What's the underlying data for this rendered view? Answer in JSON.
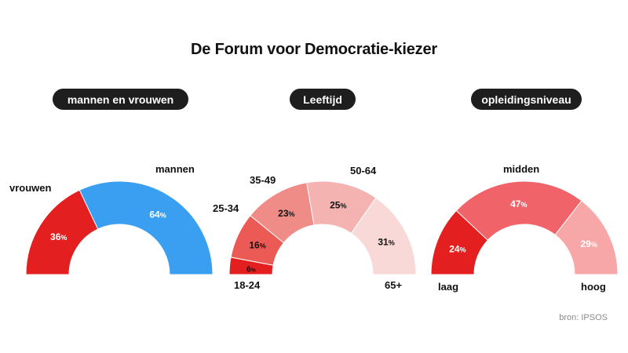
{
  "title": "De Forum voor Democratie-kiezer",
  "source": "bron: IPSOS",
  "chart_data": [
    {
      "type": "pie",
      "subtitle": "mannen en vrouwen",
      "categories": [
        "vrouwen",
        "mannen"
      ],
      "values": [
        36,
        64
      ],
      "colors": [
        "#e3201f",
        "#3a9ff0"
      ],
      "label_colors": [
        "#ffffff",
        "#ffffff"
      ]
    },
    {
      "type": "pie",
      "subtitle": "Leeftijd",
      "categories": [
        "18-24",
        "25-34",
        "35-49",
        "50-64",
        "65+"
      ],
      "values": [
        6,
        16,
        23,
        25,
        31
      ],
      "colors": [
        "#e3201f",
        "#ec5a55",
        "#f08c88",
        "#f4b2b0",
        "#f9d9d8"
      ],
      "label_colors": [
        "#111111",
        "#111111",
        "#111111",
        "#111111",
        "#111111"
      ]
    },
    {
      "type": "pie",
      "subtitle": "opleidingsniveau",
      "categories": [
        "laag",
        "midden",
        "hoog"
      ],
      "values": [
        24,
        47,
        29
      ],
      "colors": [
        "#e3201f",
        "#f06469",
        "#f7a7a7"
      ],
      "label_colors": [
        "#ffffff",
        "#ffffff",
        "#ffffff"
      ]
    }
  ]
}
